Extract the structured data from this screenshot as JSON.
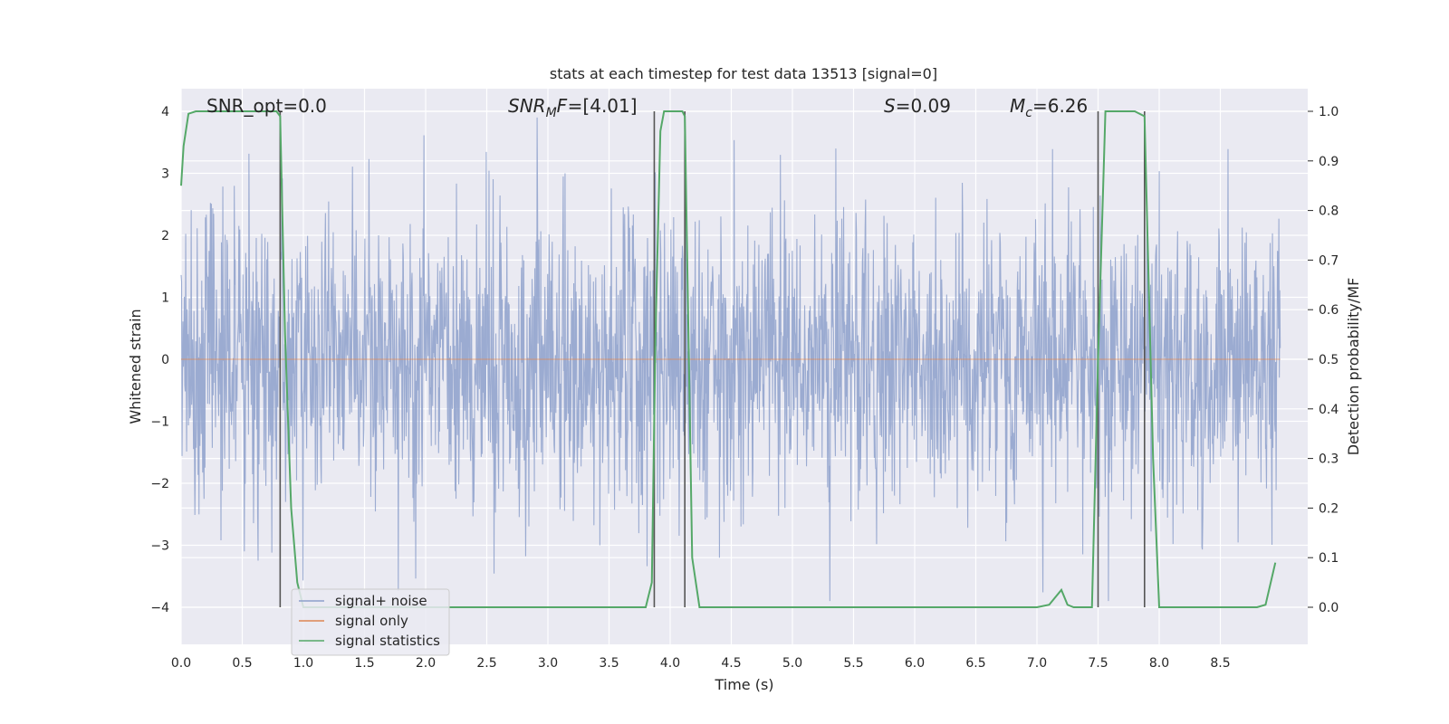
{
  "chart_data": {
    "type": "line",
    "title": "stats at each timestep for test data 13513 [signal=0]",
    "xlabel": "Time (s)",
    "ylabel_left": "Whitened strain",
    "ylabel_right": "Detection probability/MF",
    "xlim": [
      0.0,
      9.0
    ],
    "ylim_left": [
      -4.4,
      4.4
    ],
    "ylim_right": [
      -0.05,
      1.04
    ],
    "xticks": [
      "0.0",
      "0.5",
      "1.0",
      "1.5",
      "2.0",
      "2.5",
      "3.0",
      "3.5",
      "4.0",
      "4.5",
      "5.0",
      "5.5",
      "6.0",
      "6.5",
      "7.0",
      "7.5",
      "8.0",
      "8.5"
    ],
    "yticks_left": [
      "−4",
      "−3",
      "−2",
      "−1",
      "0",
      "1",
      "2",
      "3",
      "4"
    ],
    "yticks_right": [
      "0.0",
      "0.1",
      "0.2",
      "0.3",
      "0.4",
      "0.5",
      "0.6",
      "0.7",
      "0.8",
      "0.9",
      "1.0"
    ],
    "grid": true,
    "legend_placement": "lower-left",
    "annotations": {
      "snr_opt": "SNR_opt=0.0",
      "snr_mf_base": "SNR",
      "snr_mf_sub": "M",
      "snr_mf_rest": "F=[4.01]",
      "s_sym": "S",
      "s_val": "=0.09",
      "mc_sym": "M",
      "mc_sub": "c",
      "mc_val": "=6.26"
    },
    "vertical_lines_x": [
      0.81,
      3.87,
      4.12,
      7.5,
      7.88
    ],
    "series": [
      {
        "name": "signal+ noise",
        "axis": "left",
        "color": "#8da0cb",
        "style": "noise",
        "value_range": [
          -3.9,
          3.9
        ]
      },
      {
        "name": "signal only",
        "axis": "left",
        "color": "#dd8452",
        "x": [
          0.0,
          8.99
        ],
        "y": [
          0.0,
          0.0
        ]
      },
      {
        "name": "signal statistics",
        "axis": "right",
        "color": "#55a868",
        "x": [
          0.0,
          0.02,
          0.06,
          0.12,
          0.2,
          0.5,
          0.78,
          0.81,
          0.85,
          0.9,
          0.95,
          1.0,
          1.5,
          2.0,
          2.5,
          3.0,
          3.5,
          3.8,
          3.85,
          3.88,
          3.92,
          3.95,
          4.0,
          4.1,
          4.12,
          4.18,
          4.24,
          4.3,
          4.4,
          4.45,
          5.0,
          5.5,
          6.0,
          6.5,
          7.0,
          7.1,
          7.15,
          7.2,
          7.25,
          7.3,
          7.45,
          7.5,
          7.56,
          7.6,
          7.7,
          7.8,
          7.88,
          7.95,
          8.0,
          8.05,
          8.5,
          8.8,
          8.87,
          8.95
        ],
        "y": [
          0.85,
          0.93,
          0.995,
          1.0,
          1.0,
          1.0,
          1.0,
          0.99,
          0.55,
          0.2,
          0.05,
          0.0,
          0.0,
          0.0,
          0.0,
          0.0,
          0.0,
          0.0,
          0.05,
          0.55,
          0.96,
          1.0,
          1.0,
          1.0,
          0.99,
          0.1,
          0.0,
          0.0,
          0.0,
          0.0,
          0.0,
          0.0,
          0.0,
          0.0,
          0.0,
          0.005,
          0.02,
          0.035,
          0.005,
          0.0,
          0.0,
          0.5,
          1.0,
          1.0,
          1.0,
          1.0,
          0.99,
          0.3,
          0.0,
          0.0,
          0.0,
          0.0,
          0.005,
          0.09
        ]
      }
    ]
  }
}
